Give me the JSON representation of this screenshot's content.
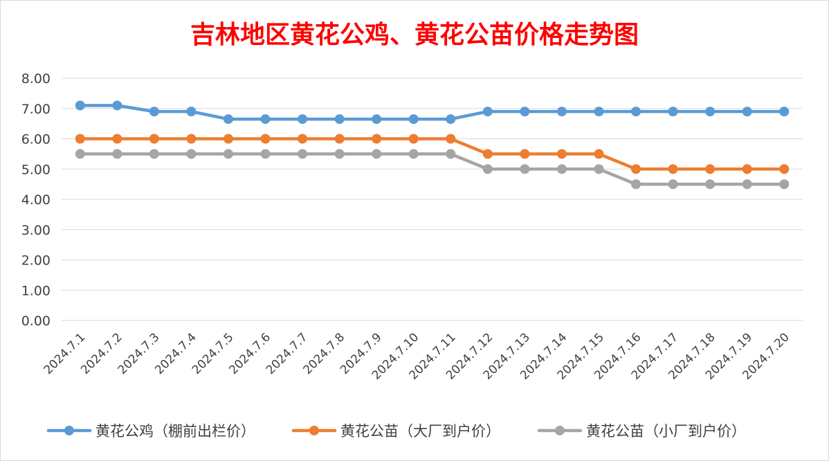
{
  "chart_data": {
    "type": "line",
    "title": "吉林地区黄花公鸡、黄花公苗价格走势图",
    "xlabel": "",
    "ylabel": "",
    "ylim": [
      0,
      8
    ],
    "y_ticks": [
      "0.00",
      "1.00",
      "2.00",
      "3.00",
      "4.00",
      "5.00",
      "6.00",
      "7.00",
      "8.00"
    ],
    "grid": true,
    "legend_position": "bottom",
    "categories": [
      "2024.7.1",
      "2024.7.2",
      "2024.7.3",
      "2024.7.4",
      "2024.7.5",
      "2024.7.6",
      "2024.7.7",
      "2024.7.8",
      "2024.7.9",
      "2024.7.10",
      "2024.7.11",
      "2024.7.12",
      "2024.7.13",
      "2024.7.14",
      "2024.7.15",
      "2024.7.16",
      "2024.7.17",
      "2024.7.18",
      "2024.7.19",
      "2024.7.20"
    ],
    "series": [
      {
        "name": "黄花公鸡（棚前出栏价）",
        "color": "#5b9bd5",
        "values": [
          7.1,
          7.1,
          6.9,
          6.9,
          6.65,
          6.65,
          6.65,
          6.65,
          6.65,
          6.65,
          6.65,
          6.9,
          6.9,
          6.9,
          6.9,
          6.9,
          6.9,
          6.9,
          6.9,
          6.9
        ]
      },
      {
        "name": "黄花公苗（大厂到户价）",
        "color": "#ed7d31",
        "values": [
          6.0,
          6.0,
          6.0,
          6.0,
          6.0,
          6.0,
          6.0,
          6.0,
          6.0,
          6.0,
          6.0,
          5.5,
          5.5,
          5.5,
          5.5,
          5.0,
          5.0,
          5.0,
          5.0,
          5.0
        ]
      },
      {
        "name": "黄花公苗（小厂到户价）",
        "color": "#a5a5a5",
        "values": [
          5.5,
          5.5,
          5.5,
          5.5,
          5.5,
          5.5,
          5.5,
          5.5,
          5.5,
          5.5,
          5.5,
          5.0,
          5.0,
          5.0,
          5.0,
          4.5,
          4.5,
          4.5,
          4.5,
          4.5
        ]
      }
    ]
  }
}
